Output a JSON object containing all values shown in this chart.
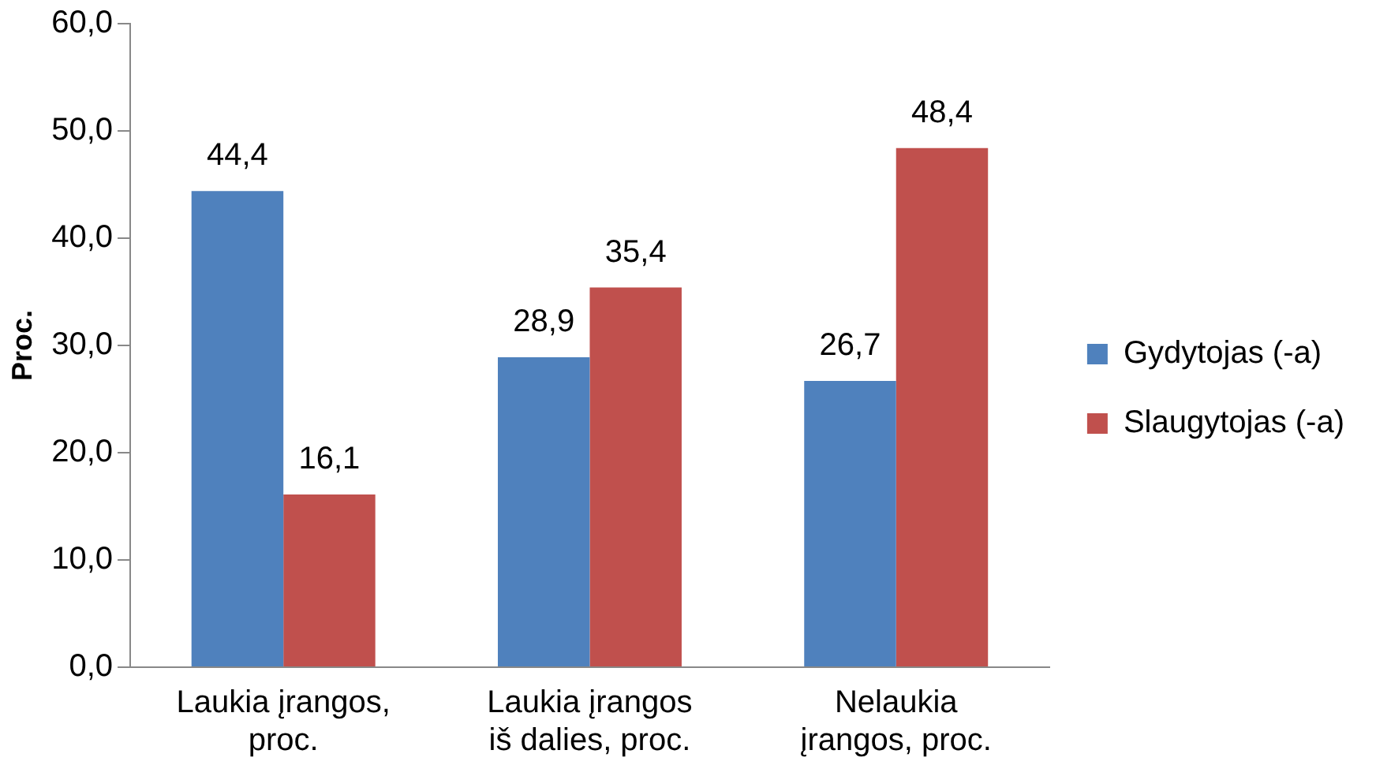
{
  "chart_data": {
    "type": "bar",
    "ylabel": "Proc.",
    "categories": [
      "Laukia įrangos, proc.",
      "Laukia įrangos iš dalies, proc.",
      "Nelaukia įrangos, proc."
    ],
    "series": [
      {
        "name": "Gydytojas (-a)",
        "color": "#4f81bd",
        "values": [
          44.4,
          28.9,
          26.7
        ],
        "value_labels": [
          "44,4",
          "28,9",
          "26,7"
        ]
      },
      {
        "name": "Slaugytojas (-a)",
        "color": "#c0504d",
        "values": [
          16.1,
          35.4,
          48.4
        ],
        "value_labels": [
          "16,1",
          "35,4",
          "48,4"
        ]
      }
    ],
    "ylim": [
      0,
      60
    ],
    "yticks": [
      {
        "value": 0,
        "label": "0,0"
      },
      {
        "value": 10,
        "label": "10,0"
      },
      {
        "value": 20,
        "label": "20,0"
      },
      {
        "value": 30,
        "label": "30,0"
      },
      {
        "value": 40,
        "label": "40,0"
      },
      {
        "value": 50,
        "label": "50,0"
      },
      {
        "value": 60,
        "label": "60,0"
      }
    ],
    "grid": false,
    "legend": "right"
  }
}
